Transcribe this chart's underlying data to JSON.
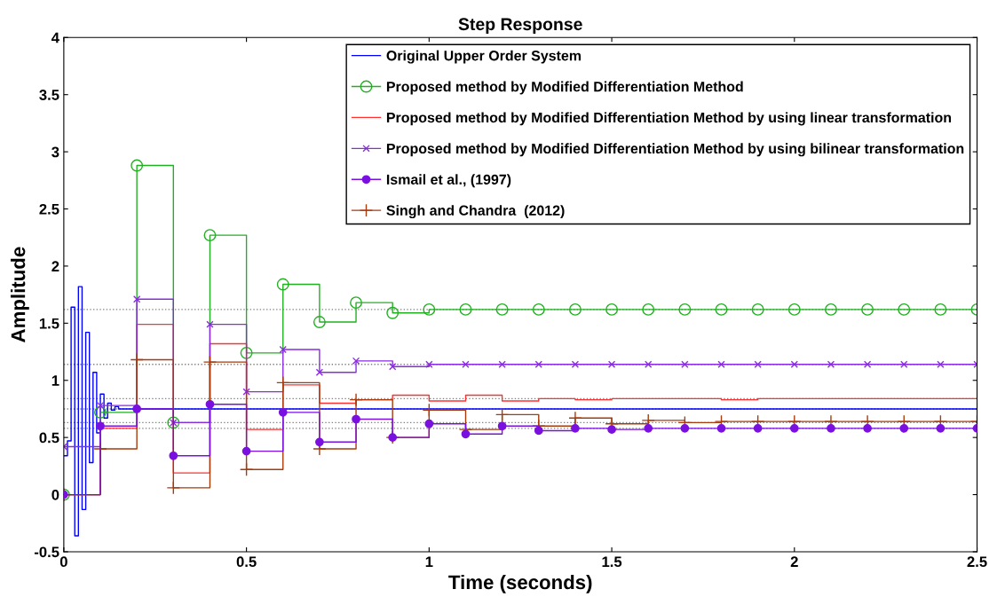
{
  "chart_data": {
    "type": "step",
    "title": "Step Response",
    "xlabel": "Time (seconds)",
    "ylabel": "Amplitude",
    "xlim": [
      0,
      2.5
    ],
    "xticks": [
      0,
      0.5,
      1,
      1.5,
      2,
      2.5
    ],
    "ylim": [
      -0.5,
      4
    ],
    "yticks": [
      -0.5,
      0,
      0.5,
      1,
      1.5,
      2,
      2.5,
      3,
      3.5,
      4
    ],
    "grid": false,
    "legend": "top right",
    "x": [
      0,
      0.1,
      0.2,
      0.3,
      0.4,
      0.5,
      0.6,
      0.7,
      0.8,
      0.9,
      1.0,
      1.1,
      1.2,
      1.3,
      1.4,
      1.5,
      1.6,
      1.7,
      1.8,
      1.9,
      2.0,
      2.1,
      2.2,
      2.3,
      2.4,
      2.5
    ],
    "series": [
      {
        "name": "Original Upper Order System",
        "color": "#0000ff",
        "marker": "none",
        "x": [
          0,
          0.01,
          0.02,
          0.03,
          0.04,
          0.05,
          0.06,
          0.07,
          0.08,
          0.09,
          0.1,
          0.11,
          0.12,
          0.13,
          0.14,
          0.15,
          2.5
        ],
        "values": [
          0.34,
          0.47,
          1.64,
          -0.36,
          1.82,
          -0.13,
          1.42,
          0.28,
          1.07,
          0.54,
          0.88,
          0.67,
          0.8,
          0.74,
          0.77,
          0.75,
          0.75
        ]
      },
      {
        "name": "Proposed method by Modified Differentiation Method",
        "color": "#22b022",
        "marker": "circle",
        "values": [
          0,
          0.72,
          2.88,
          0.63,
          2.27,
          1.24,
          1.84,
          1.51,
          1.68,
          1.59,
          1.62,
          1.62,
          1.62,
          1.62,
          1.62,
          1.62,
          1.62,
          1.62,
          1.62,
          1.62,
          1.62,
          1.62,
          1.62,
          1.62,
          1.62,
          1.62
        ]
      },
      {
        "name": "Proposed method by Modified Differentiation Method by using linear transformation",
        "color": "#ff3030",
        "marker": "none",
        "values": [
          0,
          0.58,
          1.49,
          0.19,
          1.32,
          0.57,
          0.96,
          0.8,
          0.83,
          0.87,
          0.82,
          0.87,
          0.82,
          0.84,
          0.83,
          0.84,
          0.84,
          0.84,
          0.83,
          0.84,
          0.84,
          0.84,
          0.84,
          0.84,
          0.84,
          0.84
        ]
      },
      {
        "name": "Proposed method by Modified Differentiation Method by using bilinear transformation",
        "color": "#8a2be2",
        "marker": "cross",
        "values": [
          0.42,
          0.78,
          1.71,
          0.63,
          1.49,
          0.9,
          1.27,
          1.07,
          1.17,
          1.12,
          1.14,
          1.14,
          1.14,
          1.14,
          1.14,
          1.14,
          1.14,
          1.14,
          1.14,
          1.14,
          1.14,
          1.14,
          1.14,
          1.14,
          1.14,
          1.14
        ]
      },
      {
        "name": "Ismail et al., (1997)",
        "color": "#7a10e0",
        "marker": "dot",
        "values": [
          0,
          0.6,
          0.75,
          0.34,
          0.79,
          0.38,
          0.72,
          0.46,
          0.66,
          0.5,
          0.62,
          0.53,
          0.6,
          0.56,
          0.58,
          0.57,
          0.58,
          0.58,
          0.58,
          0.58,
          0.58,
          0.58,
          0.58,
          0.58,
          0.58,
          0.58
        ]
      },
      {
        "name": "Singh and Chandra  (2012)",
        "color": "#a83a0c",
        "marker": "plus",
        "values": [
          0,
          0.4,
          1.18,
          0.06,
          1.16,
          0.22,
          0.98,
          0.4,
          0.83,
          0.5,
          0.74,
          0.57,
          0.7,
          0.6,
          0.67,
          0.62,
          0.65,
          0.63,
          0.64,
          0.64,
          0.64,
          0.64,
          0.64,
          0.64,
          0.64,
          0.64
        ]
      }
    ],
    "ref_lines": [
      {
        "axis": "y",
        "value": 1.62,
        "color": "#808080",
        "line_style": "dotted"
      },
      {
        "axis": "y",
        "value": 1.14,
        "color": "#808080",
        "line_style": "dotted"
      },
      {
        "axis": "y",
        "value": 0.84,
        "color": "#808080",
        "line_style": "dotted"
      },
      {
        "axis": "y",
        "value": 0.75,
        "color": "#808080",
        "line_style": "dotted"
      },
      {
        "axis": "y",
        "value": 0.63,
        "color": "#808080",
        "line_style": "dotted"
      },
      {
        "axis": "y",
        "value": 0.58,
        "color": "#808080",
        "line_style": "dotted"
      }
    ]
  }
}
